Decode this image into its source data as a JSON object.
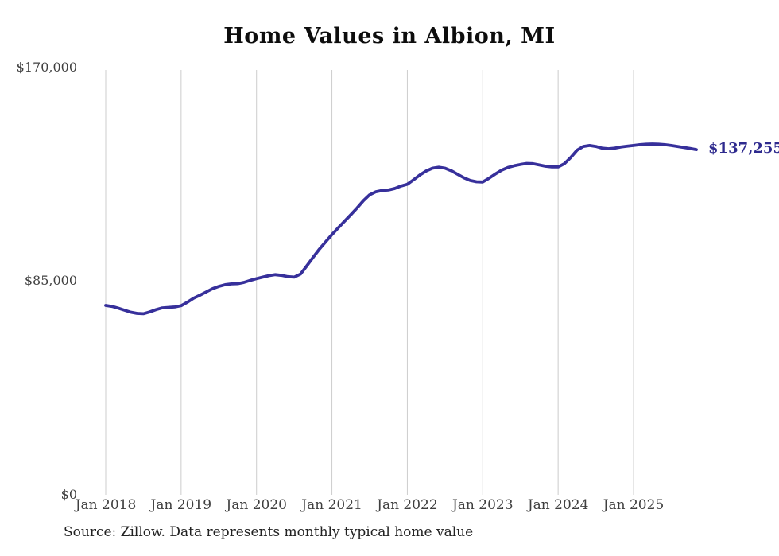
{
  "title": "Home Values in Albion, MI",
  "source_note": "Source: Zillow. Data represents monthly typical home value",
  "colors": {
    "line": "#37309b",
    "end_label": "#2e2a8e",
    "grid": "#cccccc",
    "axis_text": "#3f3f3f",
    "title_text": "#0d0d0d",
    "background": "#ffffff"
  },
  "chart_data": {
    "type": "line",
    "title": "Home Values in Albion, MI",
    "xlabel": "",
    "ylabel": "",
    "ylim": [
      0,
      170000
    ],
    "grid": "vertical-year-lines-only",
    "legend": "none",
    "frequency": "monthly",
    "start_month_label": "Jan 2018",
    "end_label": "$137,255",
    "end_value": 137255,
    "x_tick_labels": [
      "Jan 2018",
      "Jan 2019",
      "Jan 2020",
      "Jan 2021",
      "Jan 2022",
      "Jan 2023",
      "Jan 2024",
      "Jan 2025"
    ],
    "y_ticks": [
      {
        "label": "$0",
        "value": 0
      },
      {
        "label": "$85,000",
        "value": 85000
      },
      {
        "label": "$170,000",
        "value": 170000
      }
    ],
    "series": [
      {
        "name": "Typical home value",
        "values": [
          75000,
          74600,
          73900,
          73100,
          72300,
          71800,
          71700,
          72400,
          73300,
          74000,
          74200,
          74400,
          74900,
          76300,
          77900,
          79100,
          80400,
          81700,
          82600,
          83300,
          83600,
          83700,
          84200,
          85000,
          85700,
          86300,
          86900,
          87300,
          87000,
          86500,
          86300,
          87500,
          90800,
          94200,
          97500,
          100400,
          103300,
          106000,
          108600,
          111200,
          113900,
          116800,
          119200,
          120400,
          120900,
          121100,
          121700,
          122700,
          123400,
          125200,
          127100,
          128700,
          129800,
          130200,
          129800,
          128800,
          127400,
          126000,
          124900,
          124400,
          124300,
          125800,
          127500,
          129000,
          130100,
          130800,
          131300,
          131700,
          131600,
          131100,
          130600,
          130300,
          130300,
          131600,
          134100,
          137000,
          138500,
          138900,
          138500,
          137800,
          137600,
          137800,
          138300,
          138600,
          138900,
          139200,
          139400,
          139500,
          139400,
          139200,
          138900,
          138500,
          138100,
          137700,
          137255
        ]
      }
    ]
  }
}
